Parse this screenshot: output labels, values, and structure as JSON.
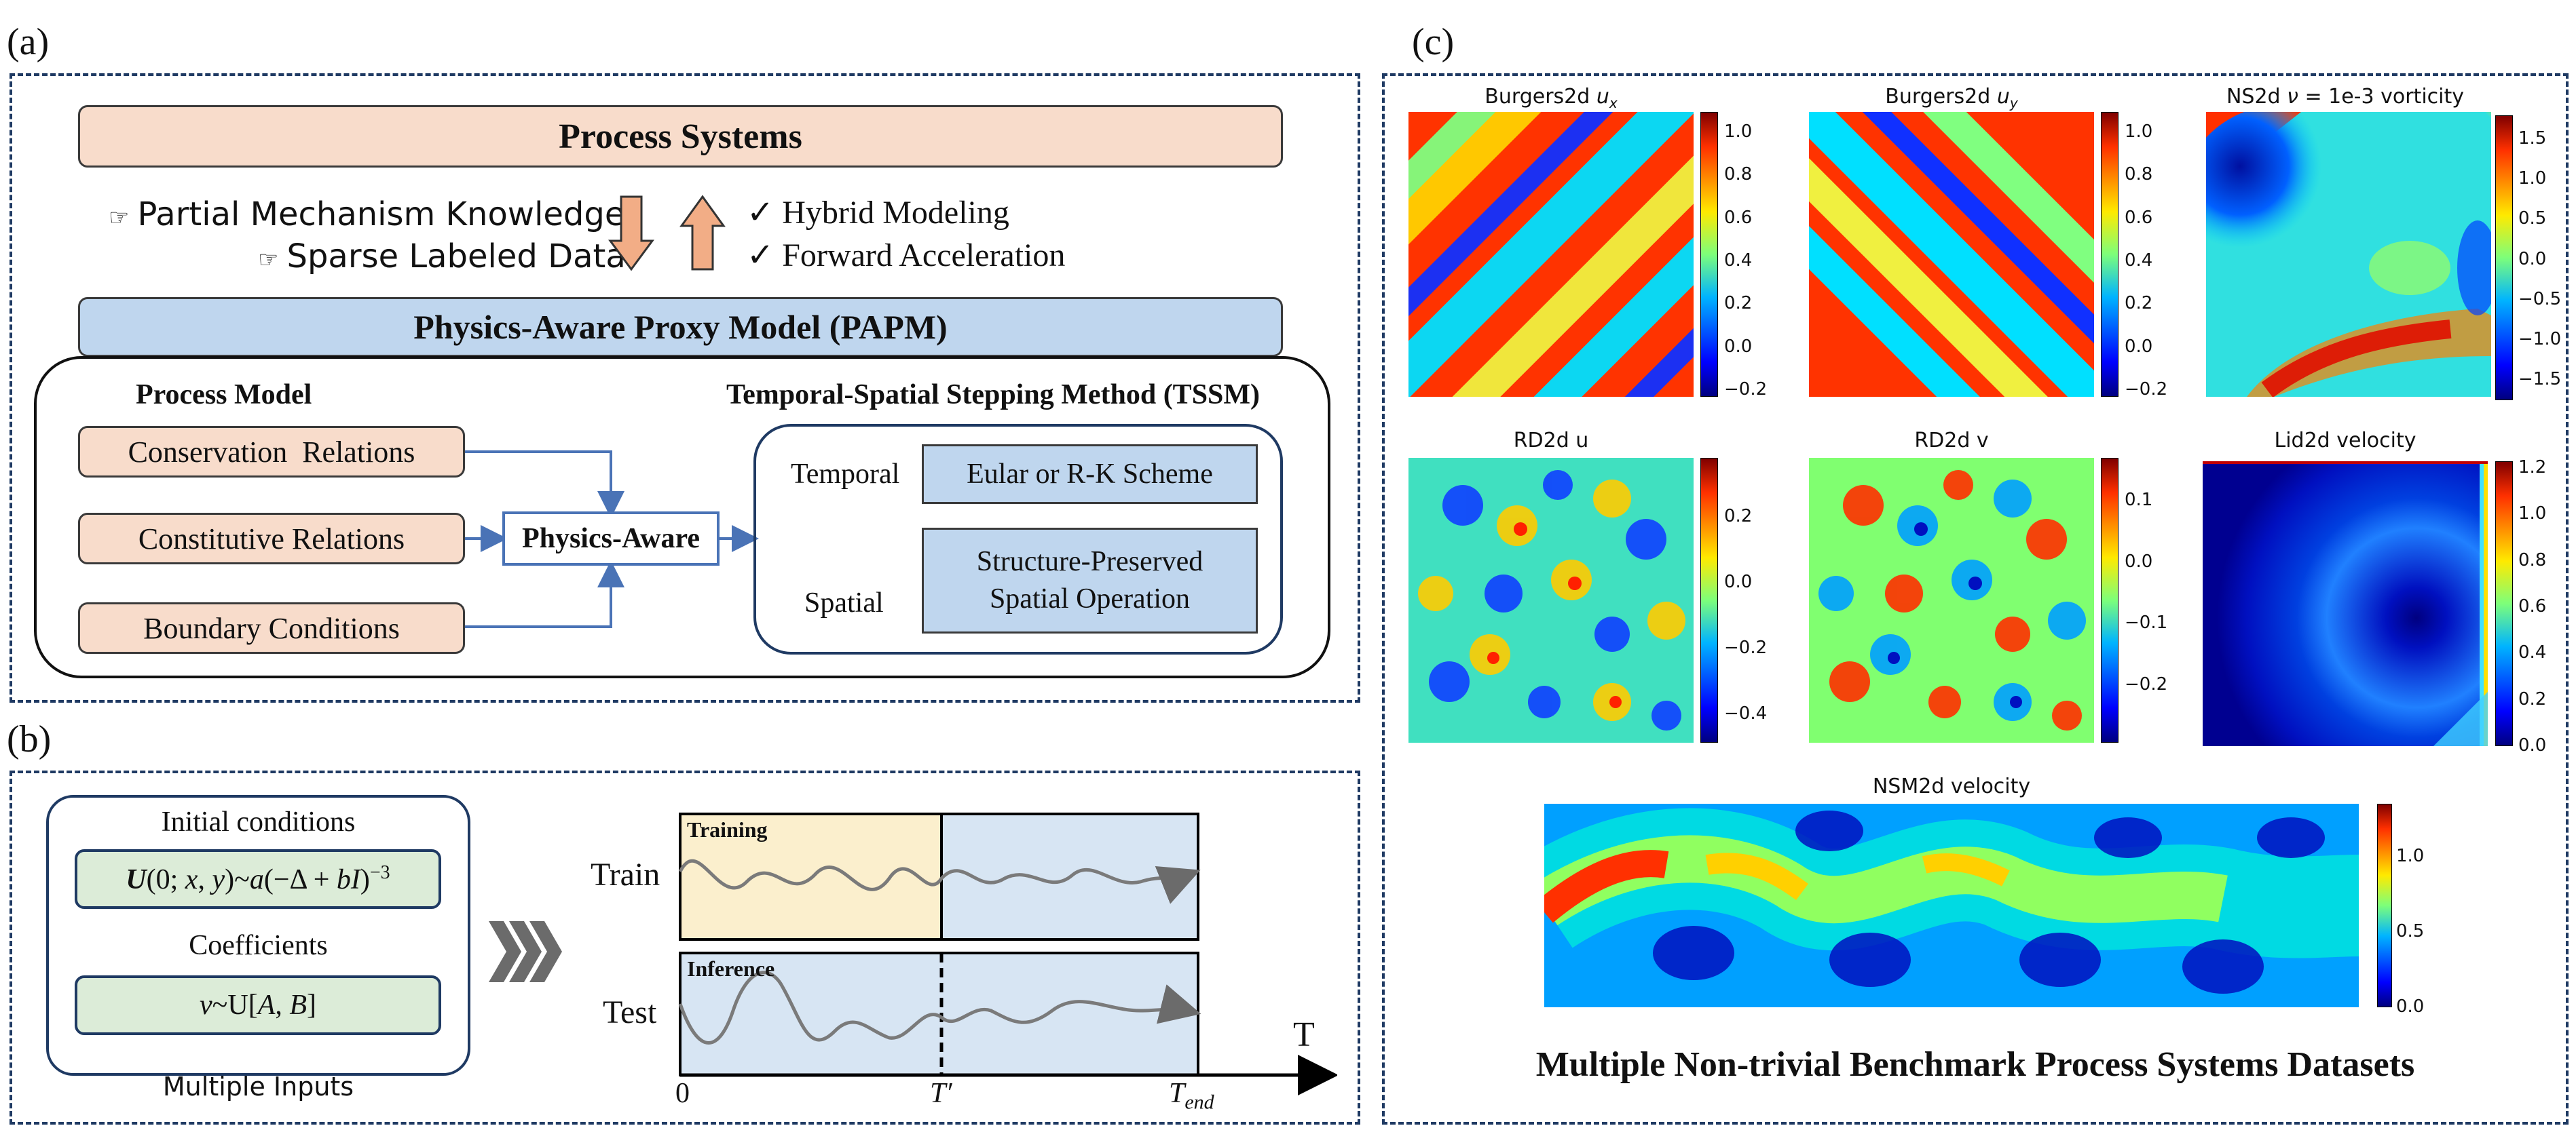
{
  "panel_a": {
    "letter": "(a)",
    "process_systems": "Process Systems",
    "left_items": [
      "Partial Mechanism Knowledge",
      "Sparse Labeled Data"
    ],
    "right_items": [
      "Hybrid Modeling",
      "Forward Acceleration"
    ],
    "papm": "Physics-Aware Proxy Model (PAPM)",
    "process_model_title": "Process Model",
    "process_items": [
      "Conservation  Relations",
      "Constitutive Relations",
      "Boundary Conditions"
    ],
    "physics_aware": "Physics-Aware",
    "tssm_title": "Temporal-Spatial Stepping Method (TSSM)",
    "temporal_label": "Temporal",
    "temporal_box": "Eular or R-K Scheme",
    "spatial_label": "Spatial",
    "spatial_box_line1": "Structure-Preserved",
    "spatial_box_line2": "Spatial Operation"
  },
  "panel_b": {
    "letter": "(b)",
    "initial_conditions": "Initial conditions",
    "coefficients": "Coefficients",
    "multiple_inputs": "Multiple Inputs",
    "train": "Train",
    "test": "Test",
    "training": "Training",
    "inference": "Inference",
    "axis_zero": "0",
    "axis_T": "T",
    "axis_Tprime": "T′",
    "axis_Tend_main": "T",
    "axis_Tend_sub": "end"
  },
  "panel_c": {
    "letter": "(c)",
    "titles": {
      "burgers_ux_prefix": "Burgers2d ",
      "burgers_uy_prefix": "Burgers2d ",
      "ns2d_prefix": "NS2d ",
      "ns2d_suffix": " = 1e-3 vorticity",
      "rd2d_u": "RD2d u",
      "rd2d_v": "RD2d v",
      "lid2d": "Lid2d velocity",
      "nsm2d": "NSM2d velocity"
    },
    "ticks": {
      "burgers_ux": [
        "1.0",
        "0.8",
        "0.6",
        "0.4",
        "0.2",
        "0.0",
        "−0.2"
      ],
      "burgers_uy": [
        "1.0",
        "0.8",
        "0.6",
        "0.4",
        "0.2",
        "0.0",
        "−0.2"
      ],
      "ns2d": [
        "1.5",
        "1.0",
        "0.5",
        "0.0",
        "−0.5",
        "−1.0",
        "−1.5"
      ],
      "rd2d_u": [
        "0.2",
        "0.0",
        "−0.2",
        "−0.4"
      ],
      "rd2d_v": [
        "0.1",
        "0.0",
        "−0.1",
        "−0.2"
      ],
      "lid2d": [
        "1.2",
        "1.0",
        "0.8",
        "0.6",
        "0.4",
        "0.2",
        "0.0"
      ],
      "nsm2d": [
        "1.0",
        "0.5",
        "0.0"
      ]
    },
    "caption": "Multiple Non-trivial Benchmark Process Systems Datasets"
  }
}
